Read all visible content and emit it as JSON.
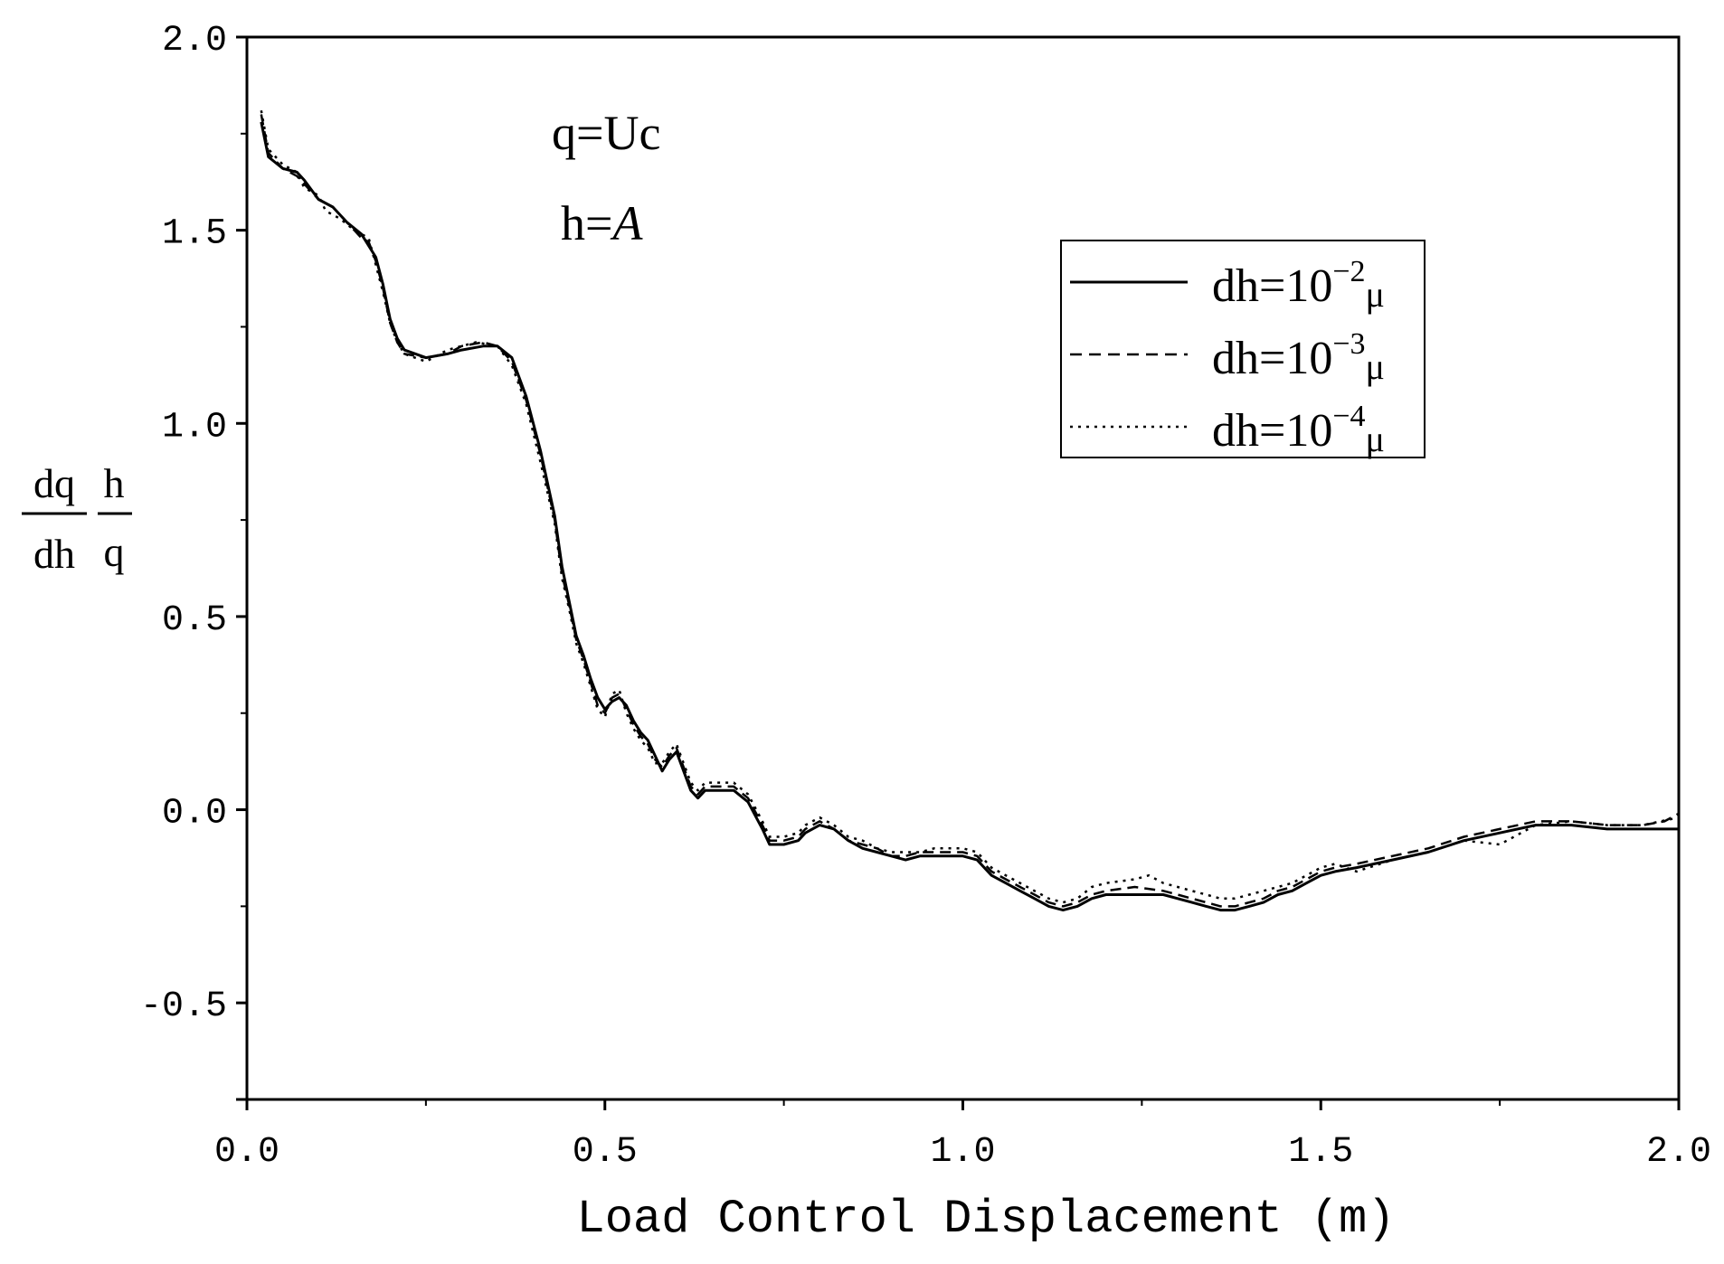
{
  "chart_data": {
    "type": "line",
    "xlabel": "Load Control Displacement (m)",
    "ylabel": {
      "frac1_num": "dq",
      "frac1_den": "dh",
      "frac2_num": "h",
      "frac2_den": "q"
    },
    "xlim": [
      0.0,
      2.0
    ],
    "ylim": [
      -0.75,
      2.0
    ],
    "xticks": [
      {
        "value": 0.0,
        "label": "0.0"
      },
      {
        "value": 0.5,
        "label": "0.5"
      },
      {
        "value": 1.0,
        "label": "1.0"
      },
      {
        "value": 1.5,
        "label": "1.5"
      },
      {
        "value": 2.0,
        "label": "2.0"
      }
    ],
    "yticks": [
      {
        "value": -0.5,
        "label": "-0.5"
      },
      {
        "value": 0.0,
        "label": "0.0"
      },
      {
        "value": 0.5,
        "label": "0.5"
      },
      {
        "value": 1.0,
        "label": "1.0"
      },
      {
        "value": 1.5,
        "label": "1.5"
      },
      {
        "value": 2.0,
        "label": "2.0"
      }
    ],
    "annotations": {
      "line1": "q=Uc",
      "line2_prefix": "h=",
      "line2_symbol": "A"
    },
    "legend": {
      "placement": "top-right",
      "entries": [
        {
          "base": "dh=10",
          "exp": "−2",
          "unit": "μ",
          "style": "solid"
        },
        {
          "base": "dh=10",
          "exp": "−3",
          "unit": "μ",
          "style": "dashed"
        },
        {
          "base": "dh=10",
          "exp": "−4",
          "unit": "μ",
          "style": "dotted"
        }
      ]
    },
    "series": [
      {
        "style": "solid",
        "points": [
          [
            0.02,
            1.78
          ],
          [
            0.03,
            1.69
          ],
          [
            0.05,
            1.66
          ],
          [
            0.07,
            1.65
          ],
          [
            0.08,
            1.63
          ],
          [
            0.1,
            1.58
          ],
          [
            0.12,
            1.56
          ],
          [
            0.14,
            1.52
          ],
          [
            0.16,
            1.49
          ],
          [
            0.18,
            1.43
          ],
          [
            0.19,
            1.36
          ],
          [
            0.2,
            1.27
          ],
          [
            0.21,
            1.22
          ],
          [
            0.22,
            1.19
          ],
          [
            0.25,
            1.17
          ],
          [
            0.28,
            1.18
          ],
          [
            0.3,
            1.19
          ],
          [
            0.33,
            1.2
          ],
          [
            0.35,
            1.2
          ],
          [
            0.37,
            1.17
          ],
          [
            0.39,
            1.07
          ],
          [
            0.41,
            0.93
          ],
          [
            0.43,
            0.76
          ],
          [
            0.44,
            0.63
          ],
          [
            0.45,
            0.54
          ],
          [
            0.46,
            0.45
          ],
          [
            0.47,
            0.4
          ],
          [
            0.48,
            0.34
          ],
          [
            0.49,
            0.29
          ],
          [
            0.5,
            0.26
          ],
          [
            0.51,
            0.28
          ],
          [
            0.52,
            0.29
          ],
          [
            0.53,
            0.27
          ],
          [
            0.54,
            0.23
          ],
          [
            0.55,
            0.2
          ],
          [
            0.56,
            0.18
          ],
          [
            0.57,
            0.14
          ],
          [
            0.58,
            0.1
          ],
          [
            0.59,
            0.13
          ],
          [
            0.6,
            0.15
          ],
          [
            0.61,
            0.1
          ],
          [
            0.62,
            0.05
          ],
          [
            0.63,
            0.03
          ],
          [
            0.64,
            0.05
          ],
          [
            0.66,
            0.05
          ],
          [
            0.68,
            0.05
          ],
          [
            0.7,
            0.02
          ],
          [
            0.72,
            -0.05
          ],
          [
            0.73,
            -0.09
          ],
          [
            0.75,
            -0.09
          ],
          [
            0.77,
            -0.08
          ],
          [
            0.78,
            -0.06
          ],
          [
            0.8,
            -0.04
          ],
          [
            0.82,
            -0.05
          ],
          [
            0.84,
            -0.08
          ],
          [
            0.86,
            -0.1
          ],
          [
            0.88,
            -0.11
          ],
          [
            0.9,
            -0.12
          ],
          [
            0.92,
            -0.13
          ],
          [
            0.94,
            -0.12
          ],
          [
            0.96,
            -0.12
          ],
          [
            0.98,
            -0.12
          ],
          [
            1.0,
            -0.12
          ],
          [
            1.02,
            -0.13
          ],
          [
            1.04,
            -0.17
          ],
          [
            1.06,
            -0.19
          ],
          [
            1.08,
            -0.21
          ],
          [
            1.1,
            -0.23
          ],
          [
            1.12,
            -0.25
          ],
          [
            1.14,
            -0.26
          ],
          [
            1.16,
            -0.25
          ],
          [
            1.18,
            -0.23
          ],
          [
            1.2,
            -0.22
          ],
          [
            1.24,
            -0.22
          ],
          [
            1.28,
            -0.22
          ],
          [
            1.3,
            -0.23
          ],
          [
            1.32,
            -0.24
          ],
          [
            1.34,
            -0.25
          ],
          [
            1.36,
            -0.26
          ],
          [
            1.38,
            -0.26
          ],
          [
            1.4,
            -0.25
          ],
          [
            1.42,
            -0.24
          ],
          [
            1.44,
            -0.22
          ],
          [
            1.46,
            -0.21
          ],
          [
            1.48,
            -0.19
          ],
          [
            1.5,
            -0.17
          ],
          [
            1.52,
            -0.16
          ],
          [
            1.55,
            -0.15
          ],
          [
            1.6,
            -0.13
          ],
          [
            1.65,
            -0.11
          ],
          [
            1.7,
            -0.08
          ],
          [
            1.75,
            -0.06
          ],
          [
            1.8,
            -0.04
          ],
          [
            1.85,
            -0.04
          ],
          [
            1.9,
            -0.05
          ],
          [
            1.95,
            -0.05
          ],
          [
            2.0,
            -0.05
          ]
        ]
      },
      {
        "style": "dashed",
        "points": [
          [
            0.02,
            1.8
          ],
          [
            0.03,
            1.7
          ],
          [
            0.05,
            1.66
          ],
          [
            0.07,
            1.64
          ],
          [
            0.08,
            1.62
          ],
          [
            0.1,
            1.58
          ],
          [
            0.12,
            1.56
          ],
          [
            0.14,
            1.52
          ],
          [
            0.16,
            1.48
          ],
          [
            0.17,
            1.47
          ],
          [
            0.18,
            1.42
          ],
          [
            0.19,
            1.35
          ],
          [
            0.2,
            1.26
          ],
          [
            0.21,
            1.21
          ],
          [
            0.22,
            1.18
          ],
          [
            0.25,
            1.17
          ],
          [
            0.28,
            1.18
          ],
          [
            0.3,
            1.2
          ],
          [
            0.33,
            1.21
          ],
          [
            0.35,
            1.2
          ],
          [
            0.37,
            1.16
          ],
          [
            0.39,
            1.06
          ],
          [
            0.41,
            0.92
          ],
          [
            0.43,
            0.75
          ],
          [
            0.44,
            0.61
          ],
          [
            0.45,
            0.53
          ],
          [
            0.46,
            0.44
          ],
          [
            0.47,
            0.39
          ],
          [
            0.48,
            0.33
          ],
          [
            0.49,
            0.27
          ],
          [
            0.5,
            0.25
          ],
          [
            0.51,
            0.29
          ],
          [
            0.52,
            0.3
          ],
          [
            0.53,
            0.26
          ],
          [
            0.54,
            0.22
          ],
          [
            0.55,
            0.19
          ],
          [
            0.56,
            0.17
          ],
          [
            0.57,
            0.13
          ],
          [
            0.58,
            0.11
          ],
          [
            0.59,
            0.14
          ],
          [
            0.6,
            0.16
          ],
          [
            0.61,
            0.11
          ],
          [
            0.62,
            0.06
          ],
          [
            0.63,
            0.04
          ],
          [
            0.64,
            0.06
          ],
          [
            0.66,
            0.06
          ],
          [
            0.68,
            0.06
          ],
          [
            0.7,
            0.03
          ],
          [
            0.72,
            -0.04
          ],
          [
            0.73,
            -0.08
          ],
          [
            0.75,
            -0.08
          ],
          [
            0.77,
            -0.07
          ],
          [
            0.78,
            -0.05
          ],
          [
            0.8,
            -0.03
          ],
          [
            0.82,
            -0.05
          ],
          [
            0.84,
            -0.08
          ],
          [
            0.86,
            -0.09
          ],
          [
            0.88,
            -0.1
          ],
          [
            0.9,
            -0.12
          ],
          [
            0.92,
            -0.12
          ],
          [
            0.94,
            -0.11
          ],
          [
            0.96,
            -0.11
          ],
          [
            0.98,
            -0.11
          ],
          [
            1.0,
            -0.11
          ],
          [
            1.02,
            -0.12
          ],
          [
            1.04,
            -0.16
          ],
          [
            1.06,
            -0.18
          ],
          [
            1.08,
            -0.2
          ],
          [
            1.1,
            -0.22
          ],
          [
            1.12,
            -0.24
          ],
          [
            1.14,
            -0.25
          ],
          [
            1.16,
            -0.24
          ],
          [
            1.18,
            -0.22
          ],
          [
            1.2,
            -0.21
          ],
          [
            1.24,
            -0.2
          ],
          [
            1.28,
            -0.21
          ],
          [
            1.3,
            -0.22
          ],
          [
            1.32,
            -0.23
          ],
          [
            1.34,
            -0.24
          ],
          [
            1.36,
            -0.25
          ],
          [
            1.38,
            -0.25
          ],
          [
            1.4,
            -0.24
          ],
          [
            1.42,
            -0.23
          ],
          [
            1.44,
            -0.21
          ],
          [
            1.46,
            -0.2
          ],
          [
            1.48,
            -0.18
          ],
          [
            1.5,
            -0.16
          ],
          [
            1.52,
            -0.15
          ],
          [
            1.55,
            -0.14
          ],
          [
            1.6,
            -0.12
          ],
          [
            1.65,
            -0.1
          ],
          [
            1.7,
            -0.07
          ],
          [
            1.75,
            -0.05
          ],
          [
            1.8,
            -0.03
          ],
          [
            1.85,
            -0.03
          ],
          [
            1.9,
            -0.04
          ],
          [
            1.95,
            -0.04
          ],
          [
            1.98,
            -0.03
          ],
          [
            2.0,
            -0.01
          ]
        ]
      },
      {
        "style": "dotted",
        "points": [
          [
            0.02,
            1.81
          ],
          [
            0.03,
            1.71
          ],
          [
            0.05,
            1.67
          ],
          [
            0.07,
            1.65
          ],
          [
            0.08,
            1.61
          ],
          [
            0.1,
            1.59
          ],
          [
            0.11,
            1.55
          ],
          [
            0.13,
            1.53
          ],
          [
            0.15,
            1.5
          ],
          [
            0.17,
            1.48
          ],
          [
            0.18,
            1.41
          ],
          [
            0.19,
            1.34
          ],
          [
            0.2,
            1.26
          ],
          [
            0.21,
            1.21
          ],
          [
            0.22,
            1.18
          ],
          [
            0.25,
            1.16
          ],
          [
            0.28,
            1.19
          ],
          [
            0.3,
            1.2
          ],
          [
            0.32,
            1.21
          ],
          [
            0.35,
            1.2
          ],
          [
            0.37,
            1.15
          ],
          [
            0.39,
            1.05
          ],
          [
            0.41,
            0.9
          ],
          [
            0.43,
            0.74
          ],
          [
            0.44,
            0.6
          ],
          [
            0.45,
            0.52
          ],
          [
            0.46,
            0.43
          ],
          [
            0.47,
            0.38
          ],
          [
            0.48,
            0.32
          ],
          [
            0.49,
            0.26
          ],
          [
            0.5,
            0.24
          ],
          [
            0.51,
            0.3
          ],
          [
            0.52,
            0.31
          ],
          [
            0.53,
            0.25
          ],
          [
            0.54,
            0.21
          ],
          [
            0.55,
            0.18
          ],
          [
            0.56,
            0.16
          ],
          [
            0.57,
            0.12
          ],
          [
            0.58,
            0.12
          ],
          [
            0.59,
            0.15
          ],
          [
            0.6,
            0.17
          ],
          [
            0.61,
            0.12
          ],
          [
            0.62,
            0.07
          ],
          [
            0.63,
            0.05
          ],
          [
            0.64,
            0.07
          ],
          [
            0.66,
            0.07
          ],
          [
            0.68,
            0.07
          ],
          [
            0.7,
            0.04
          ],
          [
            0.72,
            -0.03
          ],
          [
            0.73,
            -0.07
          ],
          [
            0.75,
            -0.07
          ],
          [
            0.77,
            -0.06
          ],
          [
            0.78,
            -0.04
          ],
          [
            0.8,
            -0.02
          ],
          [
            0.82,
            -0.04
          ],
          [
            0.84,
            -0.07
          ],
          [
            0.86,
            -0.08
          ],
          [
            0.88,
            -0.1
          ],
          [
            0.9,
            -0.11
          ],
          [
            0.92,
            -0.11
          ],
          [
            0.94,
            -0.11
          ],
          [
            0.96,
            -0.1
          ],
          [
            0.98,
            -0.1
          ],
          [
            1.0,
            -0.1
          ],
          [
            1.02,
            -0.11
          ],
          [
            1.04,
            -0.15
          ],
          [
            1.06,
            -0.17
          ],
          [
            1.08,
            -0.19
          ],
          [
            1.1,
            -0.21
          ],
          [
            1.12,
            -0.23
          ],
          [
            1.14,
            -0.24
          ],
          [
            1.16,
            -0.23
          ],
          [
            1.18,
            -0.2
          ],
          [
            1.2,
            -0.19
          ],
          [
            1.24,
            -0.18
          ],
          [
            1.26,
            -0.17
          ],
          [
            1.28,
            -0.19
          ],
          [
            1.3,
            -0.2
          ],
          [
            1.32,
            -0.21
          ],
          [
            1.34,
            -0.22
          ],
          [
            1.36,
            -0.23
          ],
          [
            1.38,
            -0.23
          ],
          [
            1.4,
            -0.22
          ],
          [
            1.42,
            -0.21
          ],
          [
            1.44,
            -0.2
          ],
          [
            1.46,
            -0.19
          ],
          [
            1.48,
            -0.17
          ],
          [
            1.5,
            -0.15
          ],
          [
            1.52,
            -0.14
          ],
          [
            1.55,
            -0.16
          ],
          [
            1.6,
            -0.13
          ],
          [
            1.65,
            -0.11
          ],
          [
            1.7,
            -0.08
          ],
          [
            1.75,
            -0.09
          ],
          [
            1.8,
            -0.04
          ],
          [
            1.85,
            -0.03
          ],
          [
            1.9,
            -0.04
          ],
          [
            1.95,
            -0.04
          ],
          [
            2.0,
            -0.02
          ]
        ]
      }
    ]
  }
}
